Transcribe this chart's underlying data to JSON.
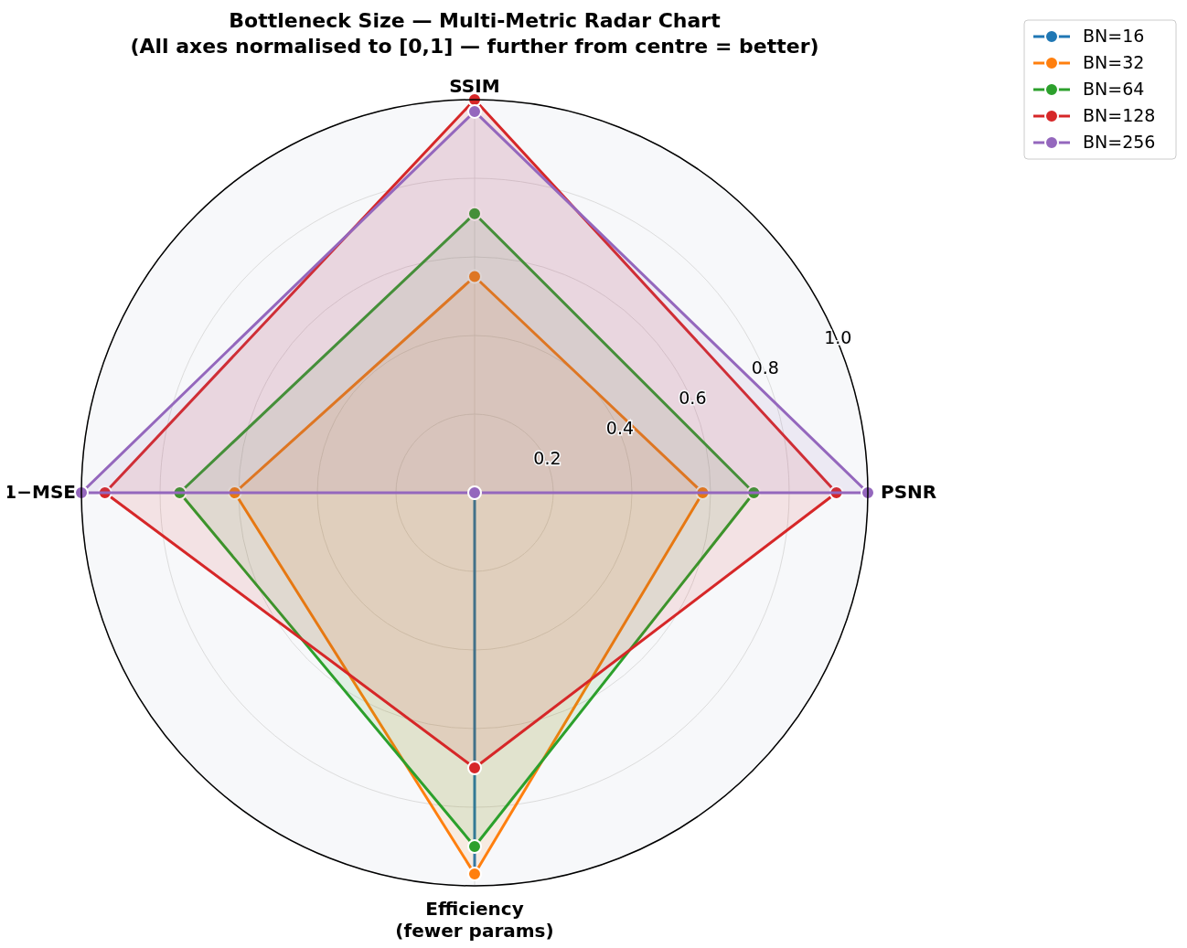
{
  "chart_data": {
    "type": "radar",
    "title": "Bottleneck Size — Multi-Metric Radar Chart",
    "subtitle": "(All axes normalised to [0,1] — further from centre = better)",
    "categories": [
      "SSIM",
      "PSNR",
      "Efficiency\n(fewer params)",
      "1−MSE"
    ],
    "ylim": [
      0,
      1
    ],
    "yticks": [
      0.2,
      0.4,
      0.6,
      0.8,
      {
        "value": 1,
        "label": "1.0"
      }
    ],
    "grid": true,
    "legend": "top right",
    "marker": "circle",
    "line_style": "solid",
    "series": [
      {
        "name": "BN=16",
        "color": "#1f77b4",
        "values": [
          0,
          0,
          0.97,
          0
        ]
      },
      {
        "name": "BN=32",
        "color": "#ff7f0e",
        "values": [
          0.55,
          0.58,
          0.97,
          0.61
        ]
      },
      {
        "name": "BN=64",
        "color": "#2ca02c",
        "values": [
          0.71,
          0.71,
          0.9,
          0.75
        ]
      },
      {
        "name": "BN=128",
        "color": "#d62728",
        "values": [
          1.0,
          0.92,
          0.7,
          0.94
        ]
      },
      {
        "name": "BN=256",
        "color": "#9467bd",
        "values": [
          0.97,
          1.0,
          0,
          1.0
        ]
      }
    ]
  }
}
